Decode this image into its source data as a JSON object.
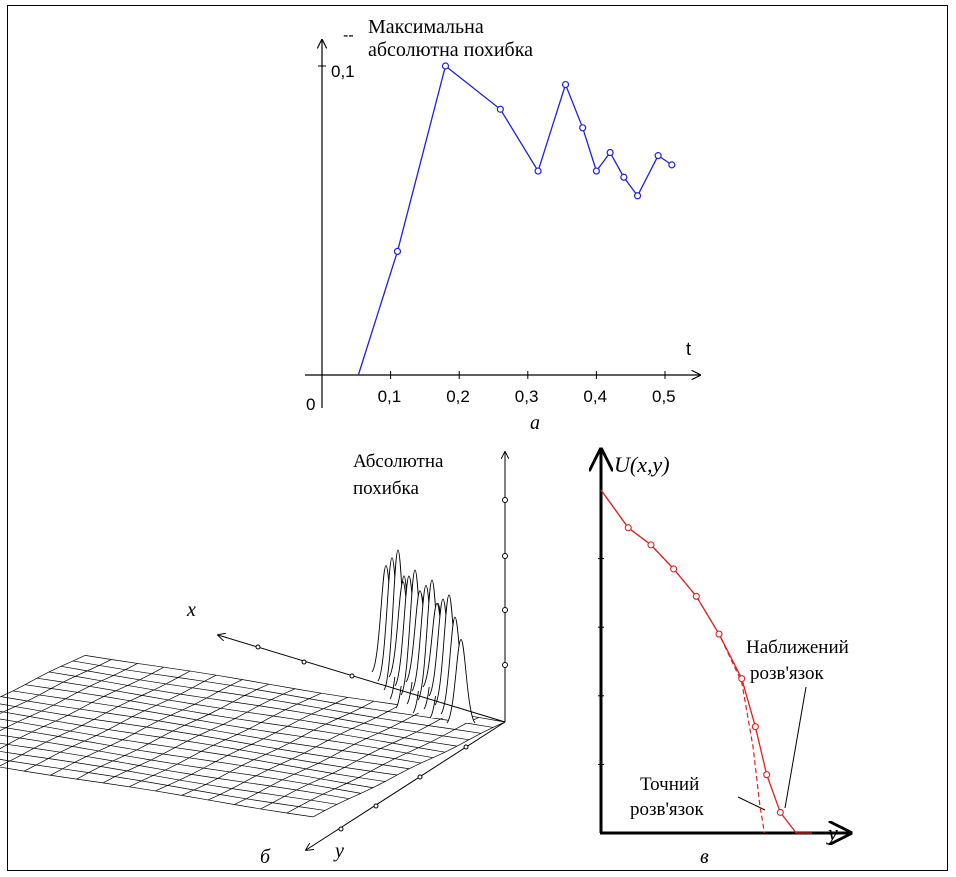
{
  "chart_data": [
    {
      "type": "line",
      "panel_label": "а",
      "title_lines": [
        "Максимальна",
        "абсолютна похибка"
      ],
      "title_prefix": "--",
      "xlabel": "t",
      "y_tick_label": "0,1",
      "origin_label": "0",
      "x_ticks": [
        "0,1",
        "0,2",
        "0,3",
        "0,4",
        "0,5"
      ],
      "color": "#1f1fe0",
      "x": [
        0.053,
        0.11,
        0.18,
        0.26,
        0.315,
        0.355,
        0.38,
        0.4,
        0.42,
        0.44,
        0.46,
        0.49,
        0.51
      ],
      "y": [
        0.0,
        0.04,
        0.1,
        0.086,
        0.066,
        0.094,
        0.08,
        0.066,
        0.072,
        0.064,
        0.058,
        0.071,
        0.068
      ],
      "xlim": [
        0,
        0.54
      ],
      "ylim": [
        0,
        0.1
      ]
    },
    {
      "type": "surface",
      "panel_label": "б",
      "zlabel_lines": [
        "Абсолютна",
        "похибка"
      ],
      "xlabel": "x",
      "ylabel": "y"
    },
    {
      "type": "line",
      "panel_label": "в",
      "ylabel": "U(x,y)",
      "xlabel": "y",
      "color": "#e02020",
      "annotations": [
        {
          "lines": [
            "Наближений",
            "розв'язок"
          ]
        },
        {
          "lines": [
            "Точний",
            "розв'язок"
          ]
        }
      ],
      "series": [
        {
          "x": [
            0,
            0.12,
            0.22,
            0.32,
            0.42,
            0.52,
            0.62,
            0.68,
            0.73,
            0.79,
            0.86,
            0.93
          ],
          "y": [
            1.0,
            0.89,
            0.84,
            0.77,
            0.69,
            0.58,
            0.45,
            0.31,
            0.17,
            0.06,
            0.0,
            0.0
          ]
        },
        {
          "x": [
            0,
            0.12,
            0.22,
            0.32,
            0.42,
            0.52,
            0.62,
            0.67,
            0.7,
            0.72
          ],
          "y": [
            1.0,
            0.89,
            0.84,
            0.77,
            0.69,
            0.58,
            0.44,
            0.25,
            0.08,
            0.0
          ]
        }
      ]
    }
  ]
}
